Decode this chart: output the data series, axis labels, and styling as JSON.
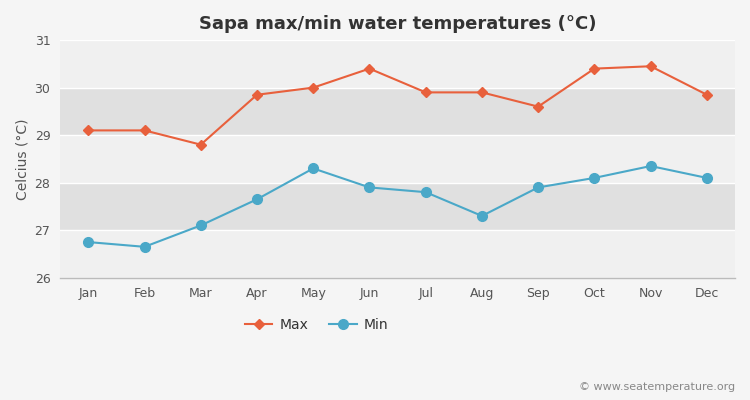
{
  "title": "Sapa max/min water temperatures (°C)",
  "ylabel": "Celcius (°C)",
  "months": [
    "Jan",
    "Feb",
    "Mar",
    "Apr",
    "May",
    "Jun",
    "Jul",
    "Aug",
    "Sep",
    "Oct",
    "Nov",
    "Dec"
  ],
  "max_temps": [
    29.1,
    29.1,
    28.8,
    29.85,
    30.0,
    30.4,
    29.9,
    29.9,
    29.6,
    30.4,
    30.45,
    29.85
  ],
  "min_temps": [
    26.75,
    26.65,
    27.1,
    27.65,
    28.3,
    27.9,
    27.8,
    27.3,
    27.9,
    28.1,
    28.35,
    28.1
  ],
  "max_color": "#e8603c",
  "min_color": "#4aa8c8",
  "bg_outer": "#f5f5f5",
  "bg_inner": "#e8e8e8",
  "band_light": "#f0f0f0",
  "band_dark": "#e0e0e0",
  "ylim": [
    26,
    31
  ],
  "yticks": [
    26,
    27,
    28,
    29,
    30,
    31
  ],
  "watermark": "© www.seatemperature.org",
  "title_fontsize": 13,
  "label_fontsize": 10,
  "tick_fontsize": 9,
  "watermark_fontsize": 8
}
